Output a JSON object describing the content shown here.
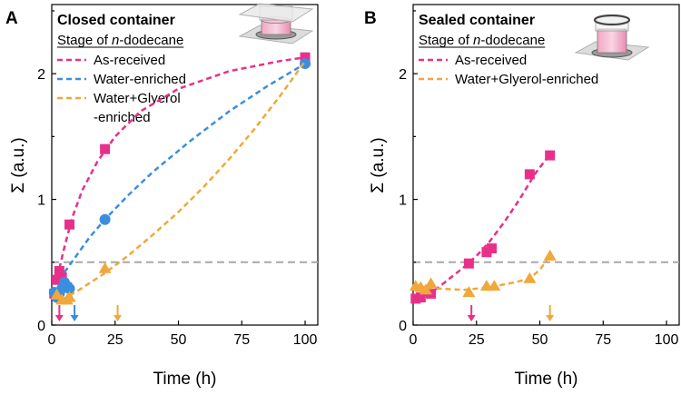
{
  "chart_data": [
    {
      "type": "scatter",
      "panel": "A",
      "title": "Closed container",
      "legend_heading_prefix": "Stage of ",
      "legend_heading_italic": "n",
      "legend_heading_suffix": "-dodecane",
      "xlabel": "Time (h)",
      "ylabel": "Σ (a.u.)",
      "xlim": [
        0,
        105
      ],
      "ylim": [
        0,
        2.55
      ],
      "xticks": [
        0,
        25,
        50,
        75,
        100
      ],
      "yticks": [
        0,
        1,
        2
      ],
      "threshold": 0.5,
      "series": [
        {
          "name": "As-received",
          "label_lines": [
            "As-received"
          ],
          "color": "#e8308a",
          "marker": "square",
          "x": [
            1,
            2,
            3,
            4,
            6,
            7,
            21,
            100
          ],
          "y": [
            0.25,
            0.36,
            0.43,
            0.38,
            0.3,
            0.8,
            1.4,
            2.13
          ],
          "fit_x": [
            3,
            5,
            8,
            12,
            18,
            25,
            35,
            50,
            70,
            90,
            100
          ],
          "fit_y": [
            0.45,
            0.62,
            0.85,
            1.07,
            1.3,
            1.5,
            1.7,
            1.88,
            2.02,
            2.1,
            2.13
          ],
          "arrow_x": 3
        },
        {
          "name": "Water-enriched",
          "label_lines": [
            "Water-enriched"
          ],
          "color": "#3a8ee0",
          "marker": "circle",
          "x": [
            1,
            2,
            3,
            4,
            5,
            6,
            7,
            21,
            100
          ],
          "y": [
            0.26,
            0.22,
            0.25,
            0.29,
            0.34,
            0.31,
            0.29,
            0.84,
            2.08
          ],
          "fit_x": [
            5,
            10,
            15,
            21,
            30,
            40,
            55,
            70,
            85,
            100
          ],
          "fit_y": [
            0.42,
            0.56,
            0.7,
            0.84,
            1.03,
            1.22,
            1.47,
            1.7,
            1.9,
            2.08
          ],
          "arrow_x": 9
        },
        {
          "name": "Water+Glyerol-enriched",
          "label_lines": [
            "Water+Glyerol",
            "-enriched"
          ],
          "color": "#f0a83a",
          "marker": "triangle",
          "x": [
            2,
            4,
            6,
            7,
            21
          ],
          "y": [
            0.24,
            0.2,
            0.2,
            0.22,
            0.45
          ],
          "fit_x": [
            4,
            10,
            20,
            30,
            40,
            50,
            60,
            70,
            80,
            90,
            100
          ],
          "fit_y": [
            0.2,
            0.27,
            0.4,
            0.55,
            0.72,
            0.9,
            1.1,
            1.32,
            1.56,
            1.82,
            2.1
          ],
          "arrow_x": 26
        }
      ]
    },
    {
      "type": "scatter",
      "panel": "B",
      "title": "Sealed container",
      "legend_heading_prefix": "Stage of ",
      "legend_heading_italic": "n",
      "legend_heading_suffix": "-dodecane",
      "xlabel": "Time (h)",
      "ylabel": "Σ (a.u.)",
      "xlim": [
        0,
        105
      ],
      "ylim": [
        0,
        2.55
      ],
      "xticks": [
        0,
        25,
        50,
        75,
        100
      ],
      "yticks": [
        0,
        1,
        2
      ],
      "threshold": 0.5,
      "series": [
        {
          "name": "As-received",
          "label_lines": [
            "As-received"
          ],
          "color": "#e8308a",
          "marker": "square",
          "x": [
            1,
            3,
            5,
            7,
            22,
            29,
            31,
            46,
            54
          ],
          "y": [
            0.21,
            0.22,
            0.27,
            0.25,
            0.49,
            0.58,
            0.61,
            1.2,
            1.35
          ],
          "fit_x": [
            2,
            6,
            10,
            15,
            20,
            25,
            30,
            36,
            42,
            48,
            54
          ],
          "fit_y": [
            0.22,
            0.24,
            0.3,
            0.38,
            0.46,
            0.55,
            0.66,
            0.82,
            1.0,
            1.2,
            1.36
          ],
          "arrow_x": 23
        },
        {
          "name": "Water+Glyerol-enriched",
          "label_lines": [
            "Water+Glyerol-enriched"
          ],
          "color": "#f0a83a",
          "marker": "triangle",
          "x": [
            1,
            3,
            5,
            7,
            22,
            29,
            32,
            46,
            54
          ],
          "y": [
            0.31,
            0.3,
            0.28,
            0.33,
            0.26,
            0.31,
            0.31,
            0.37,
            0.55
          ],
          "fit_x": [
            2,
            10,
            20,
            30,
            40,
            46,
            50,
            54
          ],
          "fit_y": [
            0.3,
            0.29,
            0.28,
            0.3,
            0.34,
            0.37,
            0.44,
            0.55
          ],
          "arrow_x": 54
        }
      ]
    }
  ],
  "threshold_color": "#a8a8a8"
}
